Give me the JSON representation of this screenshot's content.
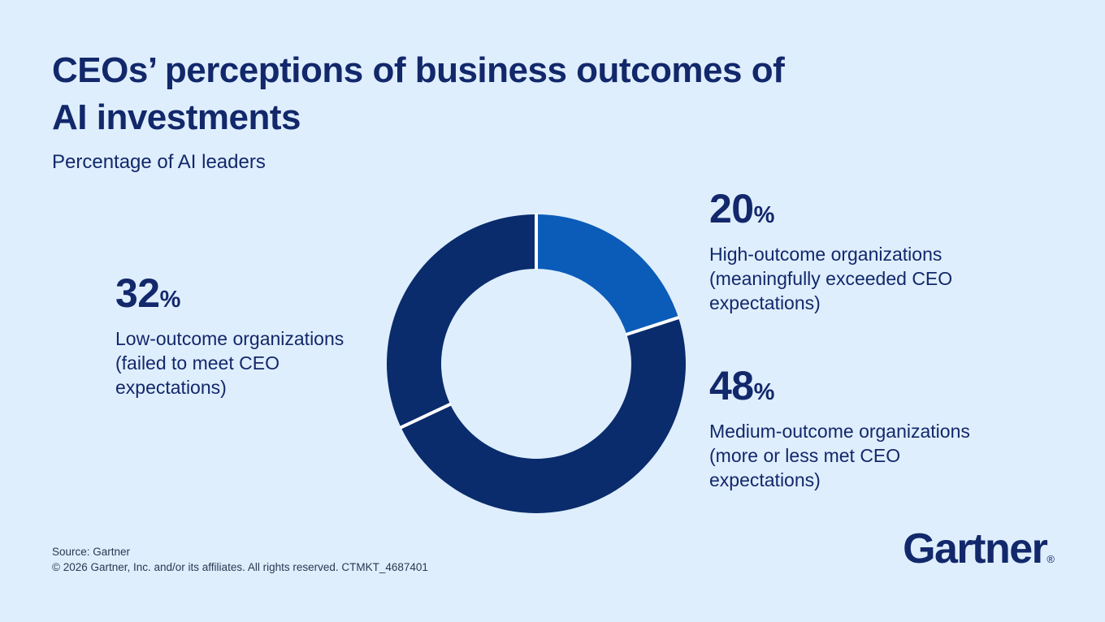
{
  "theme": {
    "background": "#DFEEFD",
    "navy_text": "#12286B",
    "donut_navy": "#0A2C6C",
    "donut_blue": "#0B5CB8",
    "separator": "#FFFFFF",
    "footer_text": "#2B3852"
  },
  "header": {
    "title_lines": [
      "CEOs’ perceptions of business outcomes of",
      "AI investments"
    ],
    "subtitle": "Percentage of AI leaders"
  },
  "chart_data": {
    "type": "pie",
    "variant": "donut",
    "title": "CEOs’ perceptions of business outcomes of AI investments",
    "unit_note": "Percentage of AI leaders",
    "start_angle_deg": 0,
    "direction": "clockwise",
    "values_unit": "%",
    "legend_position": "callouts beside chart",
    "segments": [
      {
        "name": "High-outcome organizations (meaningfully exceeded CEO expectations)",
        "value": 20,
        "color": "#0B5CB8"
      },
      {
        "name": "Medium-outcome organizations (more or less met CEO expectations)",
        "value": 48,
        "color": "#0A2C6C"
      },
      {
        "name": "Low-outcome organizations (failed to meet CEO expectations)",
        "value": 32,
        "color": "#0A2C6C"
      }
    ]
  },
  "callouts": {
    "low": {
      "value": "32",
      "unit": "%",
      "lines": [
        "Low-outcome organizations",
        "(failed to meet CEO",
        "expectations)"
      ]
    },
    "high": {
      "value": "20",
      "unit": "%",
      "lines": [
        "High-outcome organizations",
        "(meaningfully exceeded CEO",
        "expectations)"
      ]
    },
    "medium": {
      "value": "48",
      "unit": "%",
      "lines": [
        "Medium-outcome organizations",
        "(more or less met CEO",
        "expectations)"
      ]
    }
  },
  "footer": {
    "source": "Source: Gartner",
    "copyright": "© 2026 Gartner, Inc. and/or its affiliates. All rights reserved. CTMKT_4687401"
  },
  "logo": {
    "text": "Gartner",
    "registered_mark": "®"
  }
}
